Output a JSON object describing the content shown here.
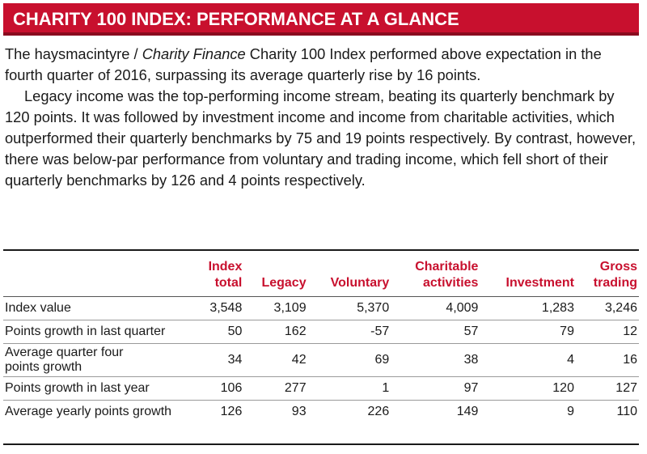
{
  "banner": {
    "title": "CHARITY 100 INDEX: PERFORMANCE AT A GLANCE",
    "color": "#c8102e"
  },
  "intro": {
    "p1_a": "The haysmacintyre / ",
    "p1_em": "Charity Finance",
    "p1_b": " Charity 100 Index performed above expectation in the fourth quarter of 2016, surpassing its average quarterly rise by 16 points.",
    "p2": "Legacy income was the top-performing income stream, beating its quarterly benchmark by 120 points. It was followed by investment income and income from charitable activities, which outperformed their quarterly benchmarks by 75 and 19 points respectively. By contrast, however, there was below-par performance from voluntary and trading income, which fell short of their quarterly benchmarks by 126 and 4 points respectively."
  },
  "table": {
    "columns": [
      {
        "line1": "Index",
        "line2": "total"
      },
      {
        "line1": "Legacy",
        "line2": ""
      },
      {
        "line1": "Voluntary",
        "line2": ""
      },
      {
        "line1": "Charitable",
        "line2": "activities"
      },
      {
        "line1": "Investment",
        "line2": ""
      },
      {
        "line1": "Gross",
        "line2": "trading"
      }
    ],
    "rows": [
      {
        "label1": "Index value",
        "label2": "",
        "values": [
          "3,548",
          "3,109",
          "5,370",
          "4,009",
          "1,283",
          "3,246"
        ]
      },
      {
        "label1": "Points growth in last quarter",
        "label2": "",
        "values": [
          "50",
          "162",
          "-57",
          "57",
          "79",
          "12"
        ]
      },
      {
        "label1": "Average quarter four",
        "label2": "points growth",
        "values": [
          "34",
          "42",
          "69",
          "38",
          "4",
          "16"
        ]
      },
      {
        "label1": "Points growth in last year",
        "label2": "",
        "values": [
          "106",
          "277",
          "1",
          "97",
          "120",
          "127"
        ]
      },
      {
        "label1": "Average yearly points growth",
        "label2": "",
        "values": [
          "126",
          "93",
          "226",
          "149",
          "9",
          "110"
        ]
      }
    ]
  }
}
